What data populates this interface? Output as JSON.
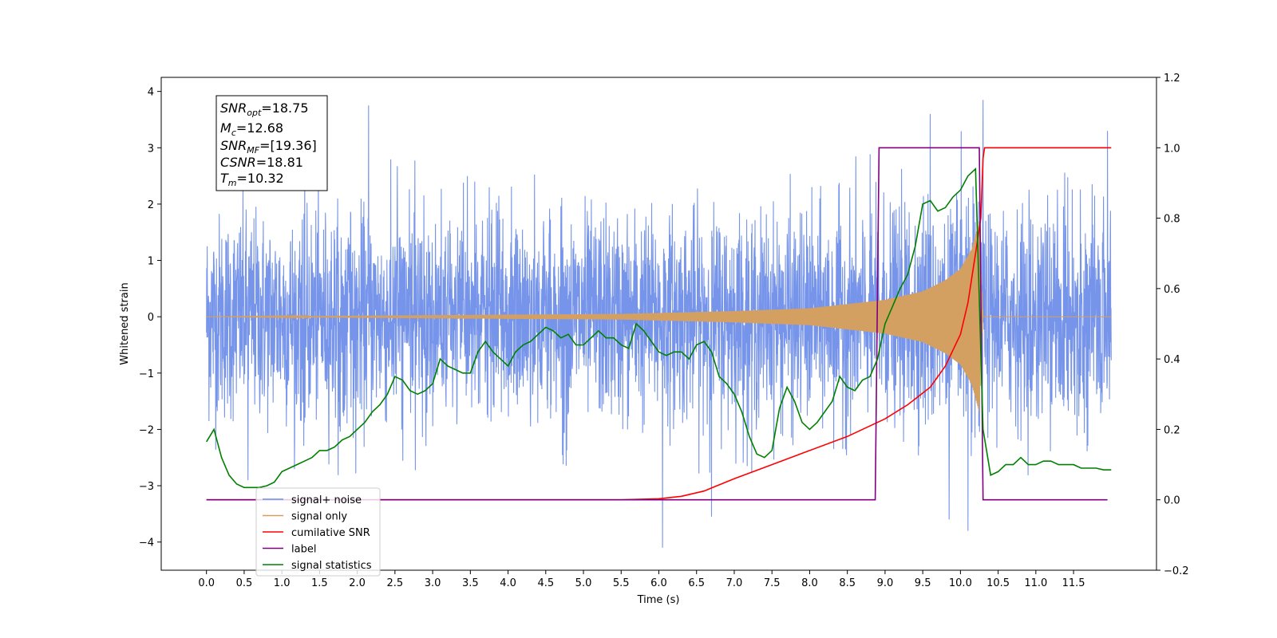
{
  "chart_data": {
    "type": "line",
    "xlabel": "Time (s)",
    "ylabel": "Whitened strain",
    "xlim": [
      -0.6,
      12.6
    ],
    "ylim": [
      -4.5,
      4.25
    ],
    "y2lim": [
      -0.2,
      1.2
    ],
    "x_ticks": [
      "0.0",
      "0.5",
      "1.0",
      "1.5",
      "2.0",
      "2.5",
      "3.0",
      "3.5",
      "4.0",
      "4.5",
      "5.0",
      "5.5",
      "6.0",
      "6.5",
      "7.0",
      "7.5",
      "8.0",
      "8.5",
      "9.0",
      "9.5",
      "10.0",
      "10.5",
      "11.0",
      "11.5"
    ],
    "y_ticks": [
      "4",
      "3",
      "2",
      "1",
      "0",
      "−1",
      "−2",
      "−3",
      "−4"
    ],
    "y2_ticks": [
      "1.2",
      "1.0",
      "0.8",
      "0.6",
      "0.4",
      "0.2",
      "0.0",
      "−0.2"
    ],
    "info_box": {
      "snr_opt_label": "SNR",
      "snr_opt_sub": "opt",
      "snr_opt_value": "=18.75",
      "mc_label": "M",
      "mc_sub": "c",
      "mc_value": "=12.68",
      "snr_mf_label": "SNR",
      "snr_mf_sub": "MF",
      "snr_mf_value": "=[19.36]",
      "csnr_label": "CSNR",
      "csnr_value": "=18.81",
      "tm_label": "T",
      "tm_sub": "m",
      "tm_value": "=10.32"
    },
    "series": [
      {
        "name": "signal+ noise",
        "color": "#6f8ee8",
        "axis": "left",
        "x_range": [
          0.0,
          12.0
        ],
        "envelope_typical": 1.5,
        "spikes": [
          [
            2.15,
            3.75
          ],
          [
            10.3,
            3.85
          ],
          [
            9.6,
            3.6
          ],
          [
            11.95,
            3.3
          ],
          [
            6.05,
            -4.1
          ],
          [
            10.1,
            -3.8
          ],
          [
            9.85,
            -3.6
          ],
          [
            6.7,
            -3.55
          ],
          [
            0.55,
            -2.9
          ]
        ]
      },
      {
        "name": "signal only",
        "color": "#d4a062",
        "axis": "left",
        "x_range": [
          0.0,
          12.0
        ],
        "chirp_amplitude_points": [
          [
            0.0,
            0.0
          ],
          [
            5.5,
            0.05
          ],
          [
            7.0,
            0.1
          ],
          [
            8.0,
            0.15
          ],
          [
            9.0,
            0.3
          ],
          [
            9.5,
            0.45
          ],
          [
            9.8,
            0.65
          ],
          [
            10.0,
            0.85
          ],
          [
            10.15,
            1.2
          ],
          [
            10.25,
            1.7
          ],
          [
            10.3,
            0.0
          ],
          [
            12.0,
            0.0
          ]
        ]
      },
      {
        "name": "cumilative SNR",
        "color": "#ff0000",
        "axis": "right",
        "points": [
          [
            0.0,
            0.0
          ],
          [
            5.5,
            0.0
          ],
          [
            6.0,
            0.003
          ],
          [
            6.3,
            0.01
          ],
          [
            6.6,
            0.025
          ],
          [
            7.0,
            0.06
          ],
          [
            7.5,
            0.1
          ],
          [
            8.0,
            0.14
          ],
          [
            8.5,
            0.18
          ],
          [
            9.0,
            0.23
          ],
          [
            9.3,
            0.27
          ],
          [
            9.6,
            0.32
          ],
          [
            9.8,
            0.38
          ],
          [
            10.0,
            0.47
          ],
          [
            10.1,
            0.56
          ],
          [
            10.2,
            0.7
          ],
          [
            10.27,
            0.8
          ],
          [
            10.3,
            0.97
          ],
          [
            10.32,
            1.0
          ],
          [
            12.0,
            1.0
          ]
        ]
      },
      {
        "name": "label",
        "color": "#800080",
        "axis": "right",
        "points": [
          [
            0.0,
            0.0
          ],
          [
            8.87,
            0.0
          ],
          [
            8.92,
            1.0
          ],
          [
            10.25,
            1.0
          ],
          [
            10.3,
            0.0
          ],
          [
            11.95,
            0.0
          ]
        ]
      },
      {
        "name": "signal statistics",
        "color": "#008000",
        "axis": "right",
        "points": [
          [
            0.0,
            0.165
          ],
          [
            0.1,
            0.2
          ],
          [
            0.2,
            0.12
          ],
          [
            0.3,
            0.07
          ],
          [
            0.4,
            0.045
          ],
          [
            0.5,
            0.035
          ],
          [
            0.6,
            0.035
          ],
          [
            0.7,
            0.035
          ],
          [
            0.8,
            0.04
          ],
          [
            0.9,
            0.05
          ],
          [
            1.0,
            0.08
          ],
          [
            1.1,
            0.09
          ],
          [
            1.2,
            0.1
          ],
          [
            1.3,
            0.11
          ],
          [
            1.4,
            0.12
          ],
          [
            1.5,
            0.14
          ],
          [
            1.6,
            0.14
          ],
          [
            1.7,
            0.15
          ],
          [
            1.8,
            0.17
          ],
          [
            1.9,
            0.18
          ],
          [
            2.0,
            0.2
          ],
          [
            2.1,
            0.22
          ],
          [
            2.2,
            0.25
          ],
          [
            2.3,
            0.27
          ],
          [
            2.4,
            0.3
          ],
          [
            2.5,
            0.35
          ],
          [
            2.6,
            0.34
          ],
          [
            2.7,
            0.31
          ],
          [
            2.8,
            0.3
          ],
          [
            2.9,
            0.31
          ],
          [
            3.0,
            0.33
          ],
          [
            3.1,
            0.4
          ],
          [
            3.2,
            0.38
          ],
          [
            3.3,
            0.37
          ],
          [
            3.4,
            0.36
          ],
          [
            3.5,
            0.36
          ],
          [
            3.6,
            0.42
          ],
          [
            3.7,
            0.45
          ],
          [
            3.8,
            0.42
          ],
          [
            3.9,
            0.4
          ],
          [
            4.0,
            0.38
          ],
          [
            4.1,
            0.42
          ],
          [
            4.2,
            0.44
          ],
          [
            4.3,
            0.45
          ],
          [
            4.4,
            0.47
          ],
          [
            4.5,
            0.49
          ],
          [
            4.6,
            0.48
          ],
          [
            4.7,
            0.46
          ],
          [
            4.8,
            0.47
          ],
          [
            4.9,
            0.44
          ],
          [
            5.0,
            0.44
          ],
          [
            5.1,
            0.46
          ],
          [
            5.2,
            0.48
          ],
          [
            5.3,
            0.46
          ],
          [
            5.4,
            0.46
          ],
          [
            5.5,
            0.44
          ],
          [
            5.6,
            0.43
          ],
          [
            5.7,
            0.5
          ],
          [
            5.8,
            0.48
          ],
          [
            5.9,
            0.45
          ],
          [
            6.0,
            0.42
          ],
          [
            6.1,
            0.41
          ],
          [
            6.2,
            0.42
          ],
          [
            6.3,
            0.42
          ],
          [
            6.4,
            0.4
          ],
          [
            6.5,
            0.44
          ],
          [
            6.6,
            0.45
          ],
          [
            6.7,
            0.42
          ],
          [
            6.8,
            0.35
          ],
          [
            6.9,
            0.33
          ],
          [
            7.0,
            0.3
          ],
          [
            7.1,
            0.25
          ],
          [
            7.2,
            0.18
          ],
          [
            7.3,
            0.13
          ],
          [
            7.4,
            0.12
          ],
          [
            7.5,
            0.14
          ],
          [
            7.6,
            0.26
          ],
          [
            7.7,
            0.32
          ],
          [
            7.8,
            0.28
          ],
          [
            7.9,
            0.22
          ],
          [
            8.0,
            0.2
          ],
          [
            8.1,
            0.22
          ],
          [
            8.2,
            0.25
          ],
          [
            8.3,
            0.28
          ],
          [
            8.4,
            0.35
          ],
          [
            8.5,
            0.32
          ],
          [
            8.6,
            0.31
          ],
          [
            8.7,
            0.34
          ],
          [
            8.8,
            0.35
          ],
          [
            8.9,
            0.4
          ],
          [
            9.0,
            0.5
          ],
          [
            9.1,
            0.55
          ],
          [
            9.2,
            0.6
          ],
          [
            9.3,
            0.64
          ],
          [
            9.4,
            0.72
          ],
          [
            9.5,
            0.84
          ],
          [
            9.6,
            0.85
          ],
          [
            9.7,
            0.82
          ],
          [
            9.8,
            0.83
          ],
          [
            9.9,
            0.86
          ],
          [
            10.0,
            0.88
          ],
          [
            10.1,
            0.92
          ],
          [
            10.2,
            0.94
          ],
          [
            10.3,
            0.2
          ],
          [
            10.4,
            0.07
          ],
          [
            10.5,
            0.08
          ],
          [
            10.6,
            0.1
          ],
          [
            10.7,
            0.1
          ],
          [
            10.8,
            0.12
          ],
          [
            10.9,
            0.1
          ],
          [
            11.0,
            0.1
          ],
          [
            11.1,
            0.11
          ],
          [
            11.2,
            0.11
          ],
          [
            11.3,
            0.1
          ],
          [
            11.4,
            0.1
          ],
          [
            11.5,
            0.1
          ],
          [
            11.6,
            0.09
          ],
          [
            11.7,
            0.09
          ],
          [
            11.8,
            0.09
          ],
          [
            11.9,
            0.085
          ],
          [
            12.0,
            0.085
          ]
        ]
      }
    ],
    "legend": {
      "placement": "lower left",
      "entries": [
        "signal+ noise",
        "signal only",
        "cumilative SNR",
        "label",
        "signal statistics"
      ]
    }
  }
}
